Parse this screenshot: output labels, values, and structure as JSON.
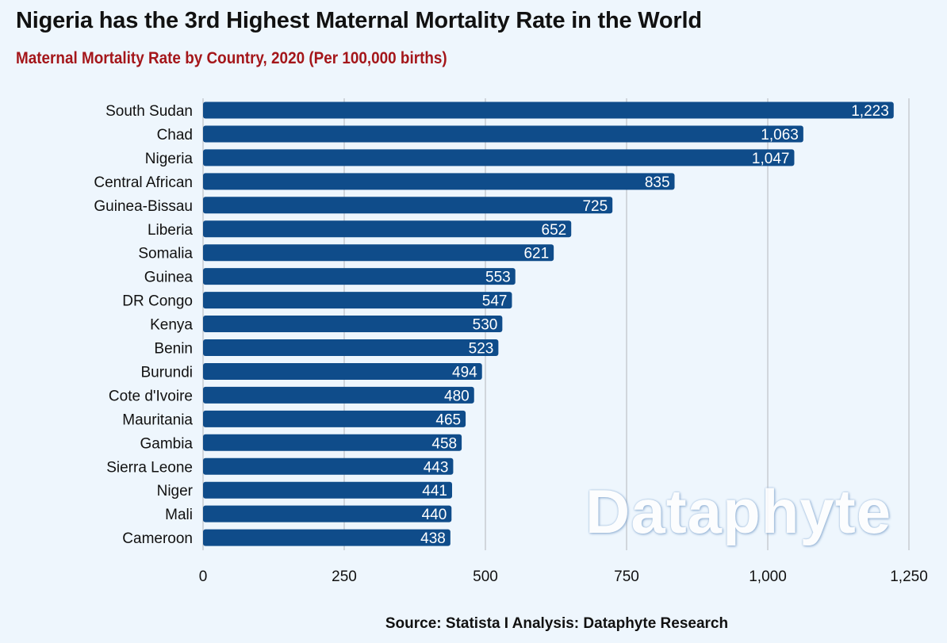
{
  "colors": {
    "background": "#eef6fd",
    "bar": "#0f4c8a",
    "title": "#111111",
    "subtitle": "#a4161a",
    "gridline": "#c7cbd1"
  },
  "chart_data": {
    "type": "bar",
    "orientation": "horizontal",
    "title": "Nigeria has the 3rd Highest Maternal Mortality Rate in the World",
    "subtitle": "Maternal Mortality Rate by Country, 2020 (Per 100,000 births)",
    "categories": [
      "South Sudan",
      "Chad",
      "Nigeria",
      "Central African",
      "Guinea-Bissau",
      "Liberia",
      "Somalia",
      "Guinea",
      "DR Congo",
      "Kenya",
      "Benin",
      "Burundi",
      "Cote d'Ivoire",
      "Mauritania",
      "Gambia",
      "Sierra Leone",
      "Niger",
      "Mali",
      "Cameroon"
    ],
    "values": [
      1223,
      1063,
      1047,
      835,
      725,
      652,
      621,
      553,
      547,
      530,
      523,
      494,
      480,
      465,
      458,
      443,
      441,
      440,
      438
    ],
    "value_labels": [
      "1,223",
      "1,063",
      "1,047",
      "835",
      "725",
      "652",
      "621",
      "553",
      "547",
      "530",
      "523",
      "494",
      "480",
      "465",
      "458",
      "443",
      "441",
      "440",
      "438"
    ],
    "xlim": [
      0,
      1250
    ],
    "xticks": [
      0,
      250,
      500,
      750,
      1000,
      1250
    ],
    "xtick_labels": [
      "0",
      "250",
      "500",
      "750",
      "1,000",
      "1,250"
    ],
    "grid": true
  },
  "watermark": "Dataphyte",
  "source": "Source: Statista I Analysis: Dataphyte Research"
}
